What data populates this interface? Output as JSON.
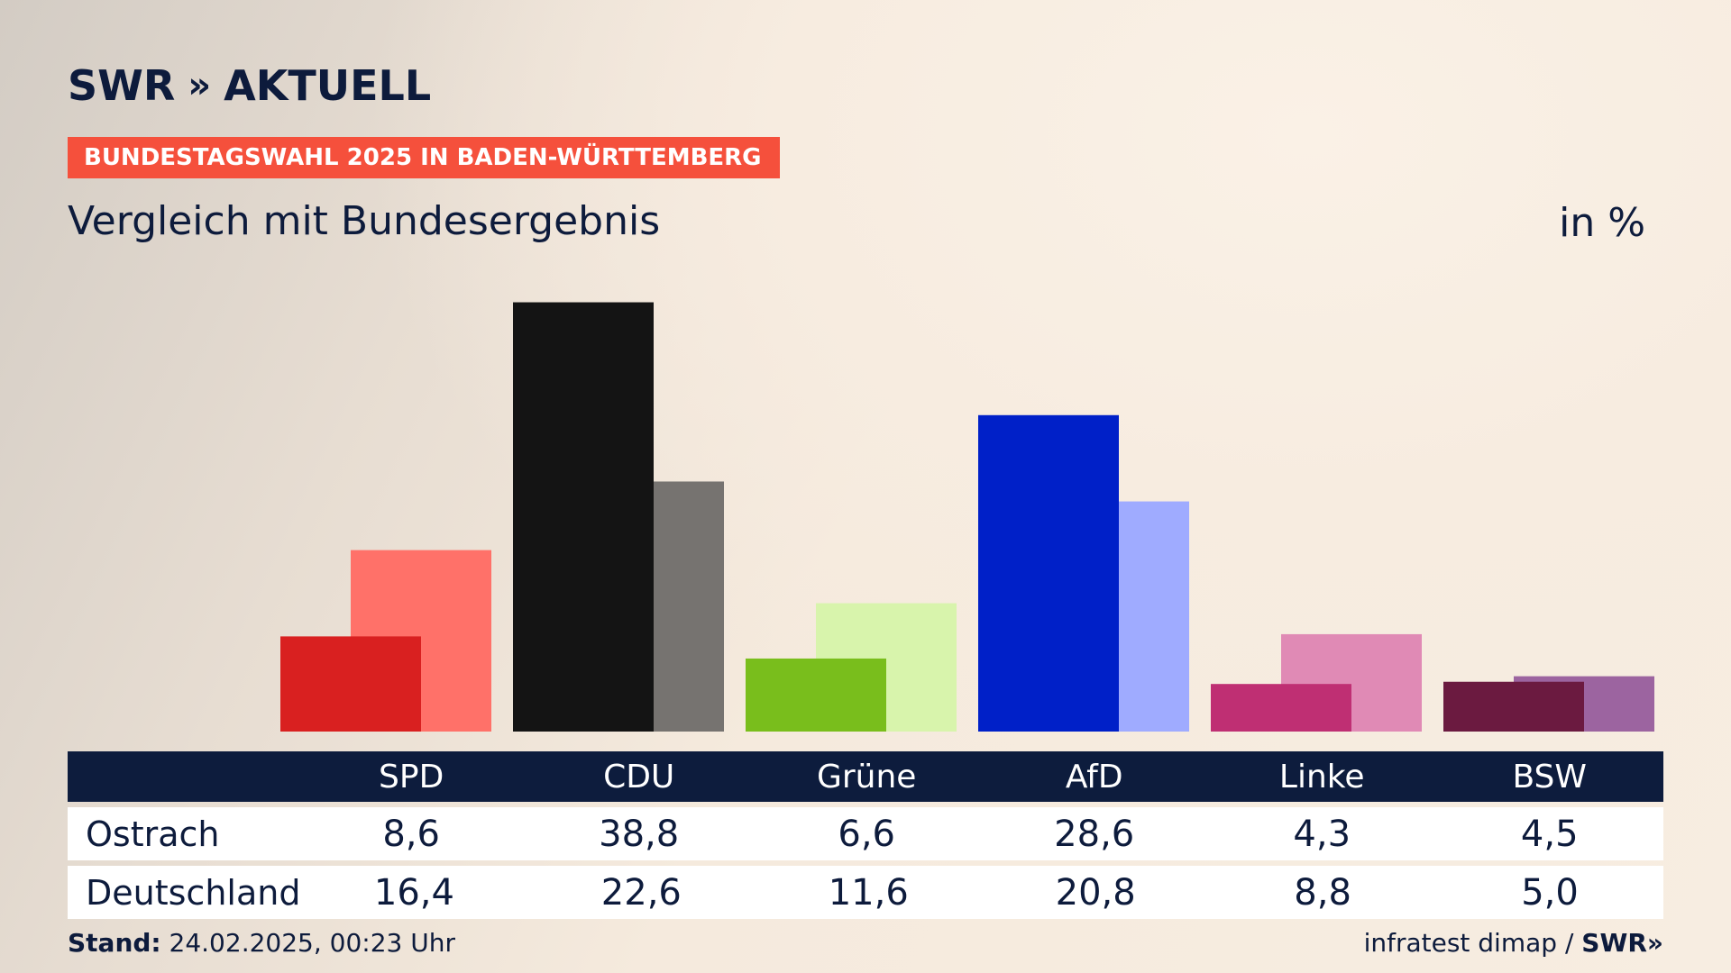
{
  "brand": {
    "logo_text": "SWR",
    "logo_chevrons": "»",
    "logo_suffix": "AKTUELL"
  },
  "header": {
    "tag": "BUNDESTAGSWAHL 2025 IN BADEN-WÜRTTEMBERG",
    "subtitle": "Vergleich mit Bundesergebnis",
    "unit": "in %"
  },
  "chart_data": {
    "type": "bar",
    "title": "Vergleich mit Bundesergebnis",
    "ylabel": "in %",
    "ylim": [
      0,
      40
    ],
    "categories": [
      "SPD",
      "CDU",
      "Grüne",
      "AfD",
      "Linke",
      "BSW"
    ],
    "series": [
      {
        "name": "Ostrach",
        "values": [
          8.6,
          38.8,
          6.6,
          28.6,
          4.3,
          4.5
        ],
        "colors": [
          "#d92020",
          "#141414",
          "#79be1c",
          "#0020c8",
          "#bf2f73",
          "#6b1a40"
        ]
      },
      {
        "name": "Deutschland",
        "values": [
          16.4,
          22.6,
          11.6,
          20.8,
          8.8,
          5.0
        ],
        "colors": [
          "#ff7169",
          "#767370",
          "#d8f4ac",
          "#9fabff",
          "#e08ab5",
          "#9c64a0"
        ]
      }
    ]
  },
  "table": {
    "header": [
      "SPD",
      "CDU",
      "Grüne",
      "AfD",
      "Linke",
      "BSW"
    ],
    "rows": [
      {
        "label": "Ostrach",
        "values": [
          "8,6",
          "38,8",
          "6,6",
          "28,6",
          "4,3",
          "4,5"
        ]
      },
      {
        "label": "Deutschland",
        "values": [
          "16,4",
          "22,6",
          "11,6",
          "20,8",
          "8,8",
          "5,0"
        ]
      }
    ]
  },
  "footer": {
    "stand_label": "Stand:",
    "stand_value": "24.02.2025, 00:23 Uhr",
    "source": "infratest dimap /",
    "source_logo": "SWR»"
  },
  "colors": {
    "navy": "#0d1c3d",
    "accent": "#f5503c"
  }
}
